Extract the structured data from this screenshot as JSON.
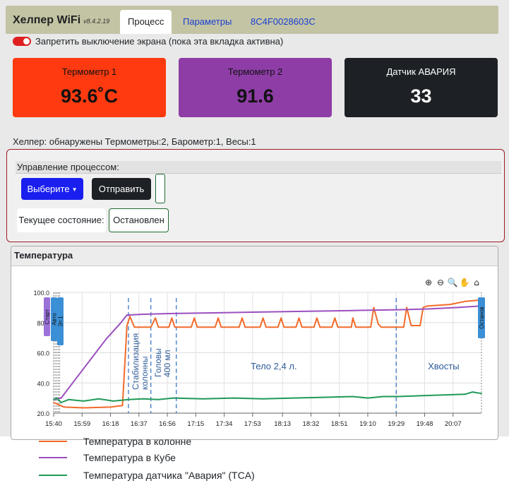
{
  "header": {
    "brand": "Хелпер WiFi",
    "version": "v8.4.2.19",
    "tabs": [
      {
        "label": "Процесс",
        "active": true
      },
      {
        "label": "Параметры",
        "active": false
      },
      {
        "label": "8C4F0028603C",
        "active": false
      }
    ]
  },
  "screen_lock": {
    "label": "Запретить выключение экрана (пока эта вкладка активна)",
    "on": true
  },
  "sensors": [
    {
      "label": "Термометр 1",
      "value": "93.6˚C",
      "color": "#ff3a10"
    },
    {
      "label": "Термометр 2",
      "value": "91.6",
      "color": "#8e3da6"
    },
    {
      "label": "Датчик АВАРИЯ",
      "value": "33",
      "color": "#1d2125"
    }
  ],
  "helper_status": "Хелпер: обнаружены Термометры:2, Барометр:1, Весы:1",
  "process": {
    "title": "Управление процессом:",
    "select_label": "Выберите",
    "send_label": "Отправить",
    "state_label": "Текущее состояние:",
    "state_value": "Остановлен"
  },
  "temperature_panel": {
    "title": "Температура"
  },
  "chart_data": {
    "type": "line",
    "ylim": [
      20,
      100
    ],
    "yticks": [
      "20.0",
      "40.0",
      "60.0",
      "80.0",
      "100.0"
    ],
    "xticks": [
      "15:40",
      "15:59",
      "16:18",
      "16:37",
      "16:56",
      "17:15",
      "17:34",
      "17:53",
      "18:13",
      "18:32",
      "18:51",
      "19:10",
      "19:29",
      "19:48",
      "20:07"
    ],
    "x_range": [
      "15:40",
      "20:26"
    ],
    "grid": true,
    "legend_position": "bottom",
    "series": [
      {
        "name": "Температура в колонне",
        "color": "#f26b2a",
        "points": [
          [
            "15:40",
            27
          ],
          [
            "15:47",
            24
          ],
          [
            "16:00",
            23.5
          ],
          [
            "16:18",
            24
          ],
          [
            "16:26",
            25
          ],
          [
            "16:28",
            60
          ],
          [
            "16:29",
            78
          ],
          [
            "16:31",
            84
          ],
          [
            "16:34",
            77
          ],
          [
            "16:45",
            77
          ],
          [
            "16:48",
            83
          ],
          [
            "16:50",
            77
          ],
          [
            "16:57",
            77
          ],
          [
            "16:59",
            83
          ],
          [
            "17:01",
            77
          ],
          [
            "17:12",
            77
          ],
          [
            "17:14",
            83
          ],
          [
            "17:16",
            77
          ],
          [
            "17:28",
            77
          ],
          [
            "17:30",
            83
          ],
          [
            "17:32",
            77
          ],
          [
            "17:44",
            77
          ],
          [
            "17:46",
            83
          ],
          [
            "17:48",
            77
          ],
          [
            "17:58",
            77
          ],
          [
            "18:00",
            83
          ],
          [
            "18:02",
            77
          ],
          [
            "18:10",
            77
          ],
          [
            "18:12",
            83
          ],
          [
            "18:14",
            77
          ],
          [
            "18:22",
            77
          ],
          [
            "18:24",
            83
          ],
          [
            "18:26",
            77
          ],
          [
            "18:34",
            77
          ],
          [
            "18:36",
            83
          ],
          [
            "18:38",
            77
          ],
          [
            "18:46",
            77
          ],
          [
            "18:48",
            83
          ],
          [
            "18:50",
            77
          ],
          [
            "18:59",
            77
          ],
          [
            "19:00",
            83
          ],
          [
            "19:02",
            77
          ],
          [
            "19:12",
            77
          ],
          [
            "19:14",
            90
          ],
          [
            "19:17",
            79
          ],
          [
            "19:19",
            77
          ],
          [
            "19:34",
            77
          ],
          [
            "19:36",
            90
          ],
          [
            "19:39",
            78
          ],
          [
            "19:45",
            78
          ],
          [
            "19:47",
            90
          ],
          [
            "19:50",
            91
          ],
          [
            "20:05",
            92
          ],
          [
            "20:15",
            94
          ],
          [
            "20:26",
            95
          ]
        ]
      },
      {
        "name": "Температура в Кубе",
        "color": "#9b4fbf",
        "points": [
          [
            "15:40",
            29
          ],
          [
            "15:45",
            30
          ],
          [
            "15:55",
            43
          ],
          [
            "16:05",
            56
          ],
          [
            "16:15",
            69
          ],
          [
            "16:25",
            80
          ],
          [
            "16:29",
            85
          ],
          [
            "16:40",
            85.5
          ],
          [
            "17:00",
            86
          ],
          [
            "17:30",
            86.5
          ],
          [
            "18:00",
            87
          ],
          [
            "18:30",
            87.5
          ],
          [
            "19:00",
            88
          ],
          [
            "19:30",
            88.5
          ],
          [
            "19:50",
            89
          ],
          [
            "20:10",
            90
          ],
          [
            "20:26",
            91
          ]
        ]
      },
      {
        "name": "Температура датчика \"Авария\" (TCA)",
        "color": "#1f9a58",
        "points": [
          [
            "15:40",
            29
          ],
          [
            "15:42",
            30
          ],
          [
            "15:45",
            27
          ],
          [
            "15:50",
            29
          ],
          [
            "16:00",
            28
          ],
          [
            "16:10",
            29.5
          ],
          [
            "16:20",
            28
          ],
          [
            "16:30",
            29
          ],
          [
            "16:40",
            29.5
          ],
          [
            "16:50",
            29
          ],
          [
            "17:00",
            30
          ],
          [
            "17:20",
            29.5
          ],
          [
            "17:40",
            30
          ],
          [
            "18:00",
            29.5
          ],
          [
            "18:20",
            30
          ],
          [
            "18:40",
            30.5
          ],
          [
            "19:00",
            31
          ],
          [
            "19:10",
            30
          ],
          [
            "19:20",
            31
          ],
          [
            "19:30",
            31
          ],
          [
            "19:45",
            31.5
          ],
          [
            "20:00",
            32
          ],
          [
            "20:15",
            32.5
          ],
          [
            "20:20",
            34
          ],
          [
            "20:26",
            33
          ]
        ]
      }
    ],
    "annotations": [
      {
        "label": "Стабилизация колонны",
        "x": "16:30"
      },
      {
        "label": "Головы 400 мл",
        "x": "16:45"
      },
      {
        "label": "Тело 2,4 л.",
        "x": "17:53"
      },
      {
        "label": "Хвосты",
        "x": "19:55"
      }
    ],
    "vertical_markers": [
      "16:30",
      "16:45",
      "17:02",
      "19:29"
    ],
    "flags": [
      {
        "label": "Старт",
        "x": "15:40",
        "color": "#9a72d8"
      },
      {
        "label": "Авто",
        "x": "15:42",
        "color": "#3b8fd6"
      },
      {
        "label": "Эт.1",
        "x": "15:44",
        "color": "#3b8fd6"
      },
      {
        "label": "Останов",
        "x": "20:26",
        "color": "#3b8fd6"
      }
    ],
    "toolbar_icons": [
      "zoom-in-icon",
      "zoom-out-icon",
      "magnifier-icon",
      "pan-icon",
      "home-icon"
    ]
  }
}
